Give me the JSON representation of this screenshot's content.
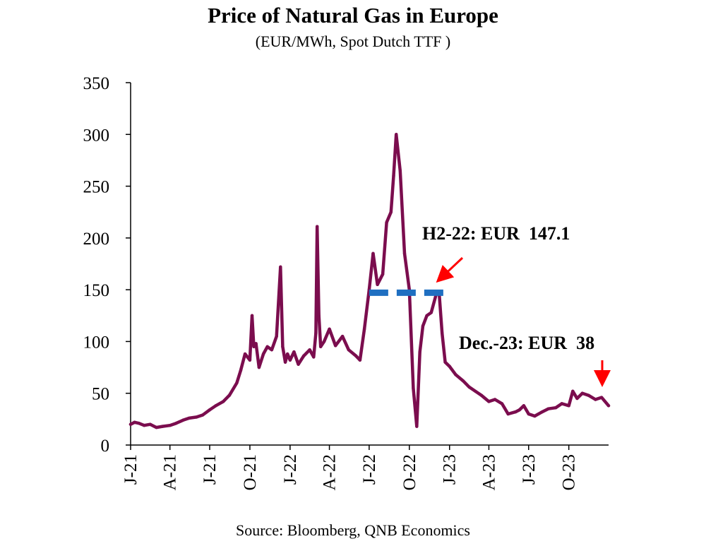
{
  "chart_data": {
    "type": "line",
    "title": "Price of Natural Gas in Europe",
    "subtitle": "(EUR/MWh, Spot Dutch TTF )",
    "source": "Source: Bloomberg, QNB Economics",
    "ylim": [
      0,
      350
    ],
    "yticks": [
      0,
      50,
      100,
      150,
      200,
      250,
      300,
      350
    ],
    "xlim": [
      "2021-01-01",
      "2023-12-31"
    ],
    "xticks": [
      {
        "date": "2021-01-01",
        "label": "J-21"
      },
      {
        "date": "2021-04-01",
        "label": "A-21"
      },
      {
        "date": "2021-07-01",
        "label": "J-21"
      },
      {
        "date": "2021-10-01",
        "label": "O-21"
      },
      {
        "date": "2022-01-01",
        "label": "J-22"
      },
      {
        "date": "2022-04-01",
        "label": "A-22"
      },
      {
        "date": "2022-07-01",
        "label": "J-22"
      },
      {
        "date": "2022-10-01",
        "label": "O-22"
      },
      {
        "date": "2023-01-01",
        "label": "J-23"
      },
      {
        "date": "2023-04-01",
        "label": "A-23"
      },
      {
        "date": "2023-07-01",
        "label": "J-23"
      },
      {
        "date": "2023-10-01",
        "label": "O-23"
      }
    ],
    "colors": {
      "price": "#7b0d4e",
      "average": "#1f6fc1",
      "arrow": "#ff0000"
    },
    "series": [
      {
        "x": [
          "2021-01-01",
          "2021-01-10",
          "2021-01-20",
          "2021-02-01",
          "2021-02-15",
          "2021-03-01",
          "2021-03-15",
          "2021-04-01",
          "2021-04-15",
          "2021-05-01",
          "2021-05-15",
          "2021-06-01",
          "2021-06-15",
          "2021-07-01",
          "2021-07-15",
          "2021-08-01",
          "2021-08-15",
          "2021-09-01",
          "2021-09-10",
          "2021-09-20",
          "2021-10-01",
          "2021-10-06",
          "2021-10-10",
          "2021-10-15",
          "2021-10-22",
          "2021-11-01",
          "2021-11-10",
          "2021-11-20",
          "2021-12-01",
          "2021-12-10",
          "2021-12-15",
          "2021-12-21",
          "2021-12-26",
          "2022-01-01",
          "2022-01-10",
          "2022-01-20",
          "2022-02-01",
          "2022-02-15",
          "2022-02-24",
          "2022-03-01",
          "2022-03-04",
          "2022-03-08",
          "2022-03-12",
          "2022-03-20",
          "2022-04-01",
          "2022-04-15",
          "2022-05-01",
          "2022-05-15",
          "2022-06-01",
          "2022-06-10",
          "2022-06-20",
          "2022-07-01",
          "2022-07-10",
          "2022-07-20",
          "2022-08-01",
          "2022-08-10",
          "2022-08-20",
          "2022-08-26",
          "2022-09-01",
          "2022-09-10",
          "2022-09-20",
          "2022-10-01",
          "2022-10-10",
          "2022-10-18",
          "2022-10-25",
          "2022-11-01",
          "2022-11-10",
          "2022-11-20",
          "2022-12-01",
          "2022-12-08",
          "2022-12-15",
          "2022-12-22",
          "2023-01-01",
          "2023-01-15",
          "2023-02-01",
          "2023-02-15",
          "2023-03-01",
          "2023-03-15",
          "2023-04-01",
          "2023-04-15",
          "2023-05-01",
          "2023-05-15",
          "2023-06-01",
          "2023-06-10",
          "2023-06-20",
          "2023-07-01",
          "2023-07-15",
          "2023-08-01",
          "2023-08-15",
          "2023-09-01",
          "2023-09-15",
          "2023-10-01",
          "2023-10-10",
          "2023-10-20",
          "2023-11-01",
          "2023-11-15",
          "2023-12-01",
          "2023-12-15",
          "2023-12-31"
        ],
        "values": [
          20,
          22,
          21,
          19,
          20,
          17,
          18,
          19,
          21,
          24,
          26,
          27,
          29,
          34,
          38,
          42,
          48,
          60,
          72,
          88,
          82,
          125,
          95,
          98,
          75,
          88,
          95,
          92,
          105,
          172,
          95,
          80,
          88,
          82,
          90,
          78,
          86,
          92,
          85,
          108,
          211,
          125,
          95,
          100,
          112,
          96,
          105,
          92,
          86,
          82,
          112,
          150,
          185,
          155,
          165,
          215,
          225,
          260,
          300,
          265,
          185,
          150,
          55,
          18,
          90,
          115,
          125,
          128,
          145,
          148,
          108,
          80,
          76,
          68,
          62,
          56,
          52,
          48,
          42,
          44,
          40,
          30,
          32,
          34,
          38,
          30,
          28,
          32,
          35,
          36,
          40,
          38,
          52,
          45,
          50,
          48,
          44,
          46,
          38
        ]
      }
    ],
    "average_segments": [
      {
        "start": "2022-07-01",
        "end": "2022-12-31",
        "value": 147.1
      }
    ],
    "annotations": [
      {
        "text": "H2-22: EUR  147.1"
      },
      {
        "text": "Dec.-23: EUR  38"
      }
    ]
  }
}
